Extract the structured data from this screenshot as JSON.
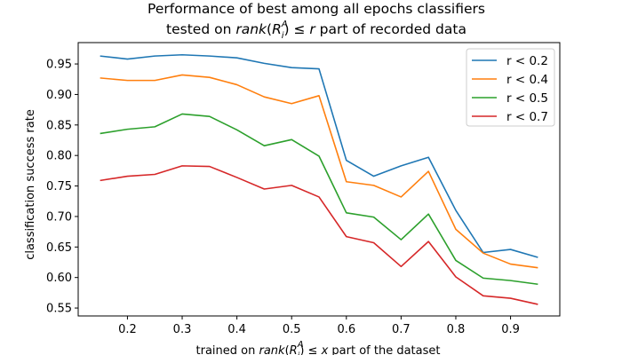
{
  "chart_data": {
    "type": "line",
    "title_line1": "Performance of best among all epochs classifiers",
    "title_line2_pre": "tested on ",
    "title_line2_post": " part of recorded data",
    "xlabel_pre": "trained on ",
    "xlabel_post": " part of the dataset",
    "ylabel": "classification success rate",
    "xlim": [
      0.11,
      0.99
    ],
    "ylim": [
      0.537,
      0.985
    ],
    "xticks": [
      0.2,
      0.3,
      0.4,
      0.5,
      0.6,
      0.7,
      0.8,
      0.9
    ],
    "yticks": [
      0.55,
      0.6,
      0.65,
      0.7,
      0.75,
      0.8,
      0.85,
      0.9,
      0.95
    ],
    "grid": false,
    "legend_position": "top-right",
    "x": [
      0.15,
      0.2,
      0.25,
      0.3,
      0.35,
      0.4,
      0.45,
      0.5,
      0.55,
      0.6,
      0.65,
      0.7,
      0.75,
      0.8,
      0.85,
      0.9,
      0.95
    ],
    "series": [
      {
        "name": "r < 0.2",
        "color": "#1f77b4",
        "values": [
          0.963,
          0.958,
          0.963,
          0.965,
          0.963,
          0.96,
          0.951,
          0.944,
          0.942,
          0.792,
          0.766,
          0.783,
          0.797,
          0.71,
          0.641,
          0.646,
          0.633
        ]
      },
      {
        "name": "r < 0.4",
        "color": "#ff7f0e",
        "values": [
          0.927,
          0.923,
          0.923,
          0.932,
          0.928,
          0.916,
          0.896,
          0.885,
          0.898,
          0.757,
          0.751,
          0.732,
          0.774,
          0.679,
          0.64,
          0.622,
          0.616
        ]
      },
      {
        "name": "r < 0.5",
        "color": "#2ca02c",
        "values": [
          0.836,
          0.843,
          0.847,
          0.868,
          0.864,
          0.842,
          0.816,
          0.826,
          0.799,
          0.706,
          0.699,
          0.662,
          0.704,
          0.628,
          0.599,
          0.595,
          0.589
        ]
      },
      {
        "name": "r < 0.7",
        "color": "#d62728",
        "values": [
          0.759,
          0.766,
          0.769,
          0.783,
          0.782,
          0.764,
          0.745,
          0.751,
          0.732,
          0.667,
          0.657,
          0.618,
          0.659,
          0.601,
          0.57,
          0.566,
          0.556
        ]
      }
    ]
  }
}
